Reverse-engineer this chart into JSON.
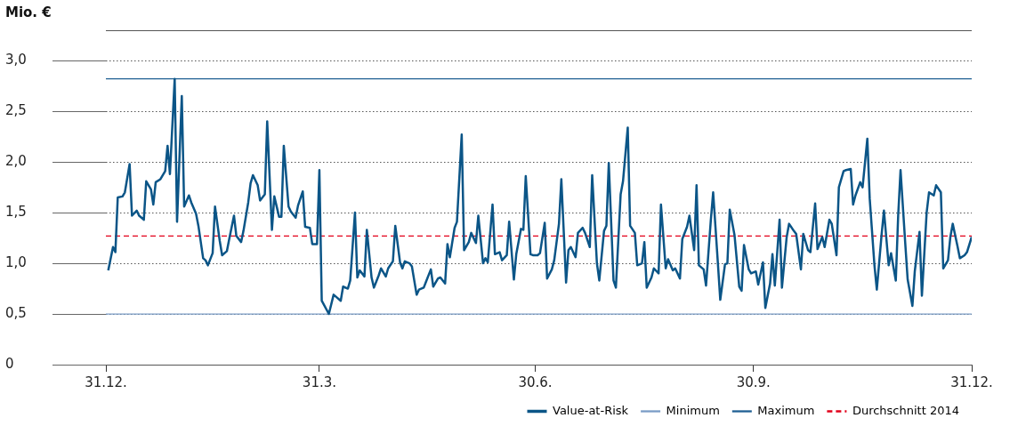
{
  "chart_data": {
    "type": "line",
    "ylabel": "Mio. €",
    "xlim": [
      "2013-12-31",
      "2014-12-31"
    ],
    "xticks": [
      {
        "value": "2013-12-31",
        "label": "31.12."
      },
      {
        "value": "2014-03-31",
        "label": "31.3."
      },
      {
        "value": "2014-06-30",
        "label": "30.6."
      },
      {
        "value": "2014-09-30",
        "label": "30.9."
      },
      {
        "value": "2014-12-31",
        "label": "31.12."
      }
    ],
    "ylim": [
      0,
      3.3
    ],
    "yticks": [
      0,
      {
        "value": 0.5,
        "label": "0,5"
      },
      {
        "value": 1,
        "label": "1,0"
      },
      {
        "value": 1.5,
        "label": "1,5"
      },
      {
        "value": 2,
        "label": "2,0"
      },
      {
        "value": 2.5,
        "label": "2,5"
      },
      {
        "value": 3,
        "label": "3,0"
      }
    ],
    "grid": "y",
    "legend": "bottom right",
    "marker": "none",
    "series": [
      {
        "name": "Value-at-Risk",
        "color": "#0b5587",
        "x": [
          "2014-01-01",
          "2014-01-03",
          "2014-01-04",
          "2014-01-05",
          "2014-01-07",
          "2014-01-08",
          "2014-01-10",
          "2014-01-11",
          "2014-01-13",
          "2014-01-14",
          "2014-01-16",
          "2014-01-17",
          "2014-01-19",
          "2014-01-20",
          "2014-01-21",
          "2014-01-23",
          "2014-01-25",
          "2014-01-26",
          "2014-01-27",
          "2014-01-29",
          "2014-01-30",
          "2014-02-01",
          "2014-02-02",
          "2014-02-04",
          "2014-02-05",
          "2014-02-07",
          "2014-02-08",
          "2014-02-10",
          "2014-02-11",
          "2014-02-12",
          "2014-02-14",
          "2014-02-15",
          "2014-02-17",
          "2014-02-18",
          "2014-02-20",
          "2014-02-21",
          "2014-02-23",
          "2014-02-24",
          "2014-02-26",
          "2014-02-27",
          "2014-03-01",
          "2014-03-02",
          "2014-03-03",
          "2014-03-05",
          "2014-03-06",
          "2014-03-08",
          "2014-03-09",
          "2014-03-11",
          "2014-03-12",
          "2014-03-14",
          "2014-03-15",
          "2014-03-16",
          "2014-03-18",
          "2014-03-19",
          "2014-03-21",
          "2014-03-22",
          "2014-03-24",
          "2014-03-25",
          "2014-03-27",
          "2014-03-28",
          "2014-03-30",
          "2014-03-31",
          "2014-04-01",
          "2014-04-04",
          "2014-04-06",
          "2014-04-07",
          "2014-04-09",
          "2014-04-10",
          "2014-04-12",
          "2014-04-13",
          "2014-04-15",
          "2014-04-16",
          "2014-04-17",
          "2014-04-19",
          "2014-04-20",
          "2014-04-22",
          "2014-04-23",
          "2014-04-25",
          "2014-04-26",
          "2014-04-28",
          "2014-04-29",
          "2014-05-01",
          "2014-05-02",
          "2014-05-04",
          "2014-05-05",
          "2014-05-06",
          "2014-05-08",
          "2014-05-09",
          "2014-05-11",
          "2014-05-12",
          "2014-05-14",
          "2014-05-15",
          "2014-05-17",
          "2014-05-18",
          "2014-05-20",
          "2014-05-21",
          "2014-05-23",
          "2014-05-24",
          "2014-05-25",
          "2014-05-27",
          "2014-05-28",
          "2014-05-30",
          "2014-05-31",
          "2014-06-02",
          "2014-06-03",
          "2014-06-05",
          "2014-06-06",
          "2014-06-08",
          "2014-06-09",
          "2014-06-10",
          "2014-06-12",
          "2014-06-13",
          "2014-06-15",
          "2014-06-16",
          "2014-06-18",
          "2014-06-19",
          "2014-06-21",
          "2014-06-22",
          "2014-06-24",
          "2014-06-25",
          "2014-06-26",
          "2014-06-28",
          "2014-06-29",
          "2014-07-01",
          "2014-07-02",
          "2014-07-04",
          "2014-07-05",
          "2014-07-07",
          "2014-07-08",
          "2014-07-10",
          "2014-07-11",
          "2014-07-13",
          "2014-07-14",
          "2014-07-15",
          "2014-07-17",
          "2014-07-18",
          "2014-07-20",
          "2014-07-21",
          "2014-07-23",
          "2014-07-24",
          "2014-07-26",
          "2014-07-27",
          "2014-07-29",
          "2014-07-30",
          "2014-07-31",
          "2014-08-02",
          "2014-08-03",
          "2014-08-05",
          "2014-08-06",
          "2014-08-08",
          "2014-08-09",
          "2014-08-11",
          "2014-08-12",
          "2014-08-14",
          "2014-08-15",
          "2014-08-16",
          "2014-08-18",
          "2014-08-19",
          "2014-08-21",
          "2014-08-22",
          "2014-08-24",
          "2014-08-25",
          "2014-08-27",
          "2014-08-28",
          "2014-08-30",
          "2014-08-31",
          "2014-09-02",
          "2014-09-03",
          "2014-09-05",
          "2014-09-06",
          "2014-09-07",
          "2014-09-09",
          "2014-09-10",
          "2014-09-12",
          "2014-09-13",
          "2014-09-15",
          "2014-09-16",
          "2014-09-18",
          "2014-09-19",
          "2014-09-20",
          "2014-09-22",
          "2014-09-24",
          "2014-09-25",
          "2014-09-26",
          "2014-09-28",
          "2014-09-29",
          "2014-10-01",
          "2014-10-02",
          "2014-10-04",
          "2014-10-05",
          "2014-10-07",
          "2014-10-08",
          "2014-10-09",
          "2014-10-11",
          "2014-10-12",
          "2014-10-14",
          "2014-10-15",
          "2014-10-17",
          "2014-10-18",
          "2014-10-20",
          "2014-10-21",
          "2014-10-23",
          "2014-10-24",
          "2014-10-26",
          "2014-10-27",
          "2014-10-29",
          "2014-10-30",
          "2014-11-01",
          "2014-11-02",
          "2014-11-04",
          "2014-11-05",
          "2014-11-07",
          "2014-11-08",
          "2014-11-10",
          "2014-11-11",
          "2014-11-12",
          "2014-11-14",
          "2014-11-15",
          "2014-11-17",
          "2014-11-18",
          "2014-11-20",
          "2014-11-21",
          "2014-11-23",
          "2014-11-24",
          "2014-11-26",
          "2014-11-27",
          "2014-11-29",
          "2014-11-30",
          "2014-12-01",
          "2014-12-03",
          "2014-12-04",
          "2014-12-06",
          "2014-12-07",
          "2014-12-09",
          "2014-12-10",
          "2014-12-12",
          "2014-12-13",
          "2014-12-15",
          "2014-12-16",
          "2014-12-18",
          "2014-12-19",
          "2014-12-21",
          "2014-12-22",
          "2014-12-23",
          "2014-12-25",
          "2014-12-26",
          "2014-12-28",
          "2014-12-29",
          "2014-12-31"
        ],
        "values": [
          0.93,
          1.16,
          1.11,
          1.65,
          1.66,
          1.7,
          1.98,
          1.47,
          1.52,
          1.47,
          1.43,
          1.81,
          1.73,
          1.58,
          1.8,
          1.83,
          1.91,
          2.16,
          1.88,
          2.82,
          1.41,
          2.65,
          1.56,
          1.67,
          1.6,
          1.49,
          1.37,
          1.05,
          1.03,
          0.98,
          1.1,
          1.56,
          1.22,
          1.08,
          1.12,
          1.24,
          1.47,
          1.27,
          1.21,
          1.32,
          1.6,
          1.79,
          1.87,
          1.77,
          1.62,
          1.68,
          2.4,
          1.33,
          1.66,
          1.46,
          1.46,
          2.16,
          1.56,
          1.51,
          1.45,
          1.57,
          1.71,
          1.36,
          1.35,
          1.19,
          1.19,
          1.92,
          0.63,
          0.5,
          0.69,
          0.67,
          0.63,
          0.77,
          0.75,
          0.83,
          1.5,
          0.86,
          0.93,
          0.87,
          1.33,
          0.86,
          0.76,
          0.88,
          0.95,
          0.87,
          0.95,
          1.02,
          1.37,
          1.01,
          0.95,
          1.02,
          1.0,
          0.97,
          0.69,
          0.74,
          0.76,
          0.82,
          0.94,
          0.77,
          0.85,
          0.86,
          0.8,
          1.19,
          1.06,
          1.35,
          1.41,
          2.27,
          1.13,
          1.21,
          1.3,
          1.2,
          1.47,
          1.0,
          1.05,
          1.01,
          1.58,
          1.09,
          1.11,
          1.03,
          1.08,
          1.41,
          0.84,
          1.09,
          1.34,
          1.33,
          1.86,
          1.09,
          1.08,
          1.08,
          1.1,
          1.4,
          0.85,
          0.94,
          1.03,
          1.39,
          1.83,
          0.81,
          1.13,
          1.16,
          1.06,
          1.3,
          1.35,
          1.3,
          1.16,
          1.87,
          1.0,
          0.83,
          1.32,
          1.37,
          1.99,
          0.83,
          0.76,
          1.68,
          1.81,
          2.34,
          1.37,
          1.3,
          0.98,
          1.0,
          1.21,
          0.76,
          0.86,
          0.95,
          0.9,
          1.58,
          0.95,
          1.04,
          0.93,
          0.95,
          0.85,
          1.24,
          1.36,
          1.47,
          1.13,
          1.77,
          0.98,
          0.94,
          0.78,
          1.42,
          1.7,
          1.0,
          0.64,
          0.99,
          1.0,
          1.53,
          1.28,
          0.77,
          0.73,
          1.18,
          0.94,
          0.9,
          0.92,
          0.79,
          1.01,
          0.56,
          0.8,
          1.09,
          0.78,
          1.43,
          0.76,
          1.26,
          1.39,
          1.32,
          1.29,
          0.94,
          1.29,
          1.13,
          1.11,
          1.59,
          1.14,
          1.26,
          1.16,
          1.43,
          1.39,
          1.08,
          1.75,
          1.91,
          1.92,
          1.93,
          1.58,
          1.67,
          1.8,
          1.75,
          2.23,
          1.64,
          0.98,
          0.74,
          1.28,
          1.52,
          0.98,
          1.1,
          0.83,
          1.47,
          1.92,
          1.19,
          0.84,
          0.58,
          0.92,
          1.31,
          0.68,
          1.5,
          1.7,
          1.67,
          1.77,
          1.7,
          0.95,
          1.03,
          1.26,
          1.39,
          1.17,
          1.05,
          1.08,
          1.11,
          1.26
        ]
      },
      {
        "name": "Minimum",
        "color": "#7a9cc6",
        "x": [
          "2013-12-31",
          "2014-12-31"
        ],
        "values": [
          0.5,
          0.5
        ]
      },
      {
        "name": "Maximum",
        "color": "#1f5f93",
        "x": [
          "2013-12-31",
          "2014-12-31"
        ],
        "values": [
          2.82,
          2.82
        ]
      },
      {
        "name": "Durchschnitt 2014",
        "color": "#e2001a",
        "line_style": "dashed",
        "x": [
          "2013-12-31",
          "2014-12-31"
        ],
        "values": [
          1.27,
          1.27
        ]
      }
    ]
  }
}
